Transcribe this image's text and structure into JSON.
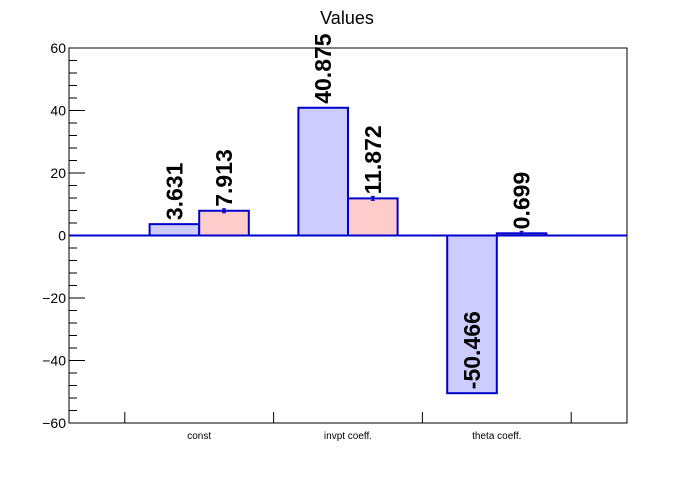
{
  "chart_data": {
    "type": "bar",
    "title": "Values",
    "xlabel": "",
    "ylabel": "",
    "categories": [
      "const",
      "invpt coeff.",
      "theta coeff."
    ],
    "series": [
      {
        "color": "#ccccff",
        "stroke": "#0000cc",
        "values": [
          3.631,
          40.875,
          -50.466
        ],
        "labels": [
          "3.631",
          "40.875",
          "-50.466"
        ]
      },
      {
        "color": "#ffcccc",
        "stroke": "#0000cc",
        "values": [
          7.913,
          11.872,
          0.699
        ],
        "labels": [
          "7.913",
          "11.872",
          "0.699"
        ],
        "error_bars": true
      }
    ],
    "ylim": [
      -60,
      60
    ],
    "yticks": [
      -60,
      -40,
      -20,
      0,
      20,
      40,
      60
    ],
    "ytick_labels": [
      "−60",
      "−40",
      "−20",
      "0",
      "20",
      "40",
      "60"
    ],
    "grid": false,
    "legend": "none"
  }
}
